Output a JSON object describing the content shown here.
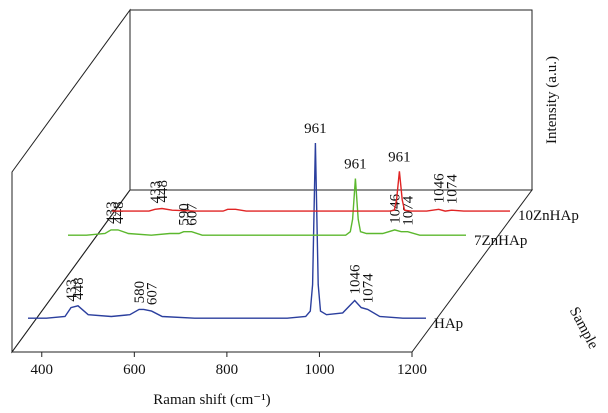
{
  "chart_data": {
    "type": "line",
    "xlabel": "Raman shift (cm⁻¹)",
    "ylabel": "Intensity (a.u.)",
    "zlabel": "Sample",
    "xlim": [
      340,
      1200
    ],
    "xticks": [
      400,
      600,
      800,
      1000,
      1200
    ],
    "ylim": [
      0,
      100
    ],
    "x": [
      340,
      380,
      420,
      433,
      448,
      470,
      520,
      560,
      580,
      590,
      607,
      630,
      700,
      800,
      830,
      900,
      940,
      950,
      955,
      961,
      967,
      972,
      985,
      1020,
      1046,
      1060,
      1074,
      1100,
      1150,
      1200
    ],
    "series": [
      {
        "name": "HAp",
        "color": "#2b3f9e",
        "values": [
          1,
          1,
          2,
          7,
          8,
          3,
          2,
          3,
          6,
          6,
          5,
          2,
          1,
          1,
          1,
          1,
          2,
          5,
          20,
          100,
          20,
          5,
          3,
          4,
          11,
          7,
          6,
          2,
          1,
          1
        ],
        "peak_labels": [
          "433",
          "448",
          "580",
          "607",
          "961",
          "1046",
          "1074"
        ]
      },
      {
        "name": "7ZnHAp",
        "color": "#5cb82e",
        "values": [
          1,
          1,
          2,
          4,
          4,
          2,
          1,
          2,
          2,
          3,
          3,
          1,
          1,
          1,
          1,
          1,
          1,
          3,
          10,
          33,
          10,
          3,
          2,
          2,
          4,
          3,
          3,
          1,
          1,
          1
        ],
        "peak_labels": [
          "433",
          "448",
          "590",
          "607",
          "961",
          "1046",
          "1074"
        ]
      },
      {
        "name": "10ZnHAp",
        "color": "#e02424",
        "values": [
          0.5,
          0.5,
          0.5,
          1.5,
          2,
          1,
          0.5,
          0.5,
          0.5,
          1.5,
          1.5,
          0.5,
          0.5,
          0.5,
          0.5,
          0.5,
          0.5,
          1,
          7,
          23,
          7,
          1,
          0.5,
          0.5,
          1.5,
          0.5,
          1,
          0.5,
          0.5,
          0.5
        ],
        "peak_labels": [
          "433",
          "448",
          "961",
          "1046",
          "1074"
        ]
      }
    ]
  }
}
